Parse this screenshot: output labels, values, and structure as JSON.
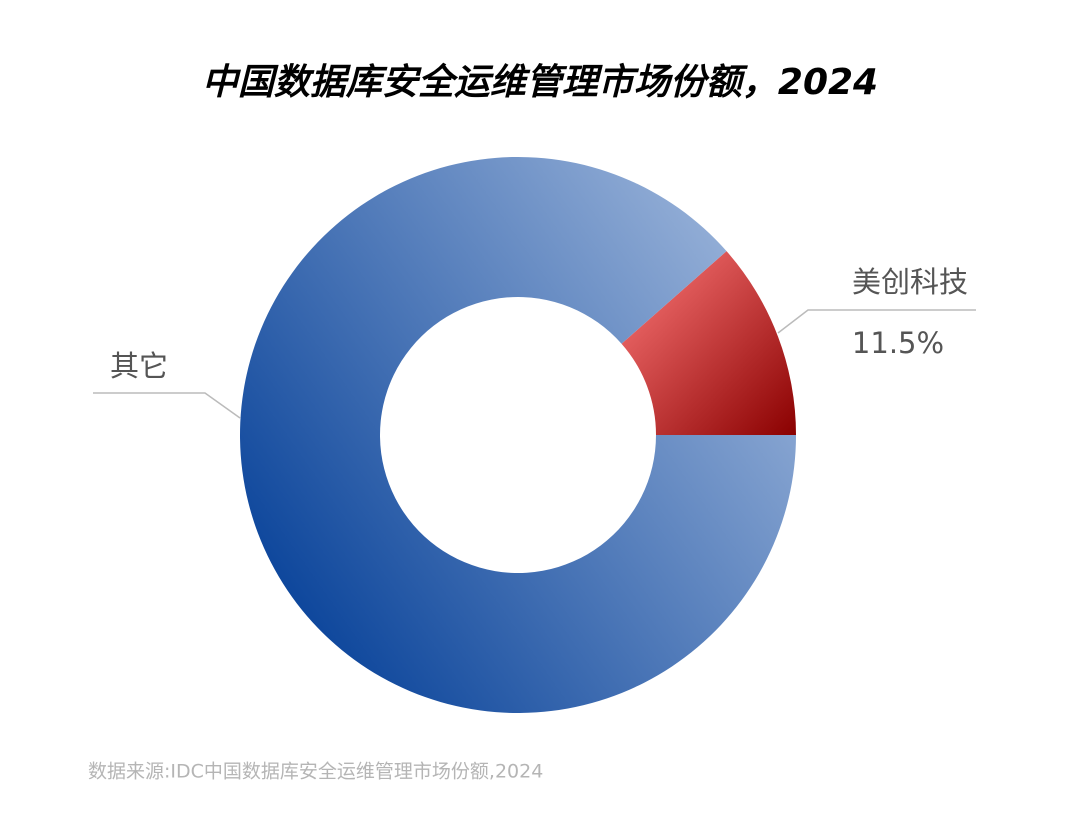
{
  "chart_data": {
    "type": "donut",
    "title": "中国数据库安全运维管理市场份额，2024",
    "categories": [
      "美创科技",
      "其它"
    ],
    "values": [
      11.5,
      88.5
    ],
    "value_labels": [
      "11.5%",
      null
    ],
    "colors": [
      [
        "#ff7b7b",
        "#8a0000"
      ],
      [
        "#003c96",
        "#a0b8dc"
      ]
    ],
    "source": "数据来源:IDC中国数据库安全运维管理市场份额,2024"
  }
}
